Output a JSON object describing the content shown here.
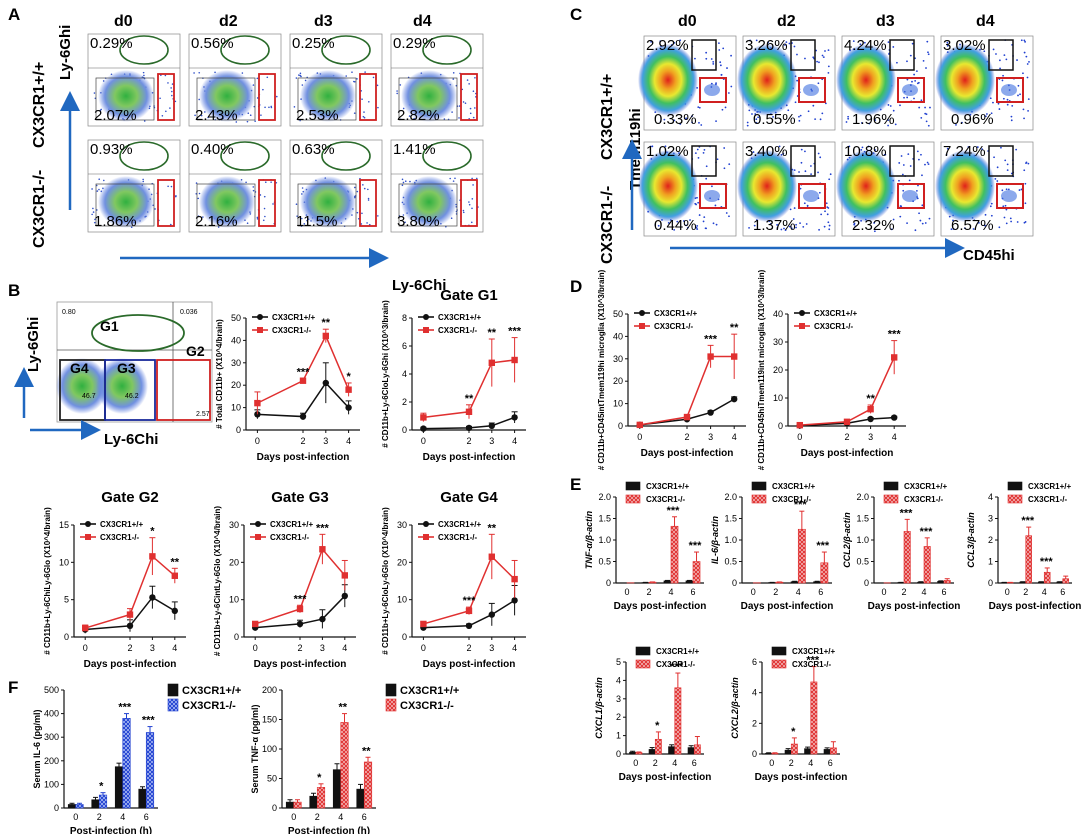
{
  "panels": {
    "a": "A",
    "b": "B",
    "c": "C",
    "d": "D",
    "e": "E",
    "f": "F"
  },
  "days": [
    "d0",
    "d2",
    "d3",
    "d4"
  ],
  "rows": {
    "wt": "CX3CR1+/+",
    "ko": "CX3CR1-/-"
  },
  "genotype_wt": "CX3CR1+/+",
  "genotype_ko": "CX3CR1-/-",
  "panel_a": {
    "y_axis": "Ly-6Ghi",
    "x_axis": "Ly-6Chi",
    "wt_top": [
      "0.29%",
      "0.56%",
      "0.25%",
      "0.29%"
    ],
    "wt_bot": [
      "2.07%",
      "2.43%",
      "2.53%",
      "2.82%"
    ],
    "ko_top": [
      "0.93%",
      "0.40%",
      "0.63%",
      "1.41%"
    ],
    "ko_bot": [
      "1.86%",
      "2.16%",
      "11.5%",
      "3.80%"
    ]
  },
  "panel_c": {
    "y_axis": "Tmem119hi",
    "x_axis": "CD45hi",
    "wt_top": [
      "2.92%",
      "3.26%",
      "4.24%",
      "3.02%"
    ],
    "wt_bot": [
      "0.33%",
      "0.55%",
      "1.96%",
      "0.96%"
    ],
    "ko_top": [
      "1.02%",
      "3.40%",
      "10.8%",
      "7.24%"
    ],
    "ko_bot": [
      "0.44%",
      "1.37%",
      "2.32%",
      "6.57%"
    ]
  },
  "panel_b_gate": {
    "y_axis": "Ly-6Ghi",
    "x_axis": "Ly-6Chi",
    "gates": [
      "G1",
      "G2",
      "G3",
      "G4"
    ],
    "values": [
      "0.80",
      "0.036",
      "46.7",
      "46.2",
      "2.57"
    ]
  },
  "x_label_days": "Days post-infection",
  "x_label_hours": "Post-infection (h)",
  "chart_data": [
    {
      "id": "b1",
      "type": "line",
      "title": "",
      "ylabel": "# Total CD11b+ (X10^4/brain)",
      "xlabel": "Days post-infection",
      "x": [
        0,
        2,
        3,
        4
      ],
      "ylim": [
        0,
        50
      ],
      "yticks": [
        0,
        10,
        20,
        30,
        40,
        50
      ],
      "series": [
        {
          "name": "CX3CR1+/+",
          "values": [
            7,
            6,
            21,
            10
          ],
          "err": [
            2,
            1.5,
            9,
            3
          ]
        },
        {
          "name": "CX3CR1-/-",
          "values": [
            12,
            22,
            42,
            18
          ],
          "err": [
            5,
            1,
            3,
            3
          ]
        }
      ],
      "annotations": [
        {
          "x": 2,
          "text": "***"
        },
        {
          "x": 3,
          "text": "**"
        },
        {
          "x": 4,
          "text": "*"
        }
      ]
    },
    {
      "id": "b2",
      "type": "line",
      "title": "Gate G1",
      "ylabel": "# CD11b+Ly-6CloLy-6Ghi (X10^3/brain)",
      "xlabel": "Days post-infection",
      "x": [
        0,
        2,
        3,
        4
      ],
      "ylim": [
        0,
        8
      ],
      "yticks": [
        0,
        2,
        4,
        6,
        8
      ],
      "series": [
        {
          "name": "CX3CR1+/+",
          "values": [
            0.1,
            0.15,
            0.3,
            0.9
          ],
          "err": [
            0.1,
            0.1,
            0.2,
            0.4
          ]
        },
        {
          "name": "CX3CR1-/-",
          "values": [
            0.9,
            1.3,
            4.8,
            5.0
          ],
          "err": [
            0.3,
            0.5,
            1.7,
            1.6
          ]
        }
      ],
      "annotations": [
        {
          "x": 2,
          "text": "**"
        },
        {
          "x": 3,
          "text": "**"
        },
        {
          "x": 4,
          "text": "***"
        }
      ]
    },
    {
      "id": "b3",
      "type": "line",
      "title": "Gate G2",
      "ylabel": "# CD11b+Ly-6ChiLy-6Glo (X10^4/brain)",
      "xlabel": "Days post-infection",
      "x": [
        0,
        2,
        3,
        4
      ],
      "ylim": [
        0,
        15
      ],
      "yticks": [
        0,
        5,
        10,
        15
      ],
      "series": [
        {
          "name": "CX3CR1+/+",
          "values": [
            1.0,
            1.5,
            5.3,
            3.5
          ],
          "err": [
            0.5,
            0.8,
            1.5,
            1.2
          ]
        },
        {
          "name": "CX3CR1-/-",
          "values": [
            1.2,
            3.0,
            10.8,
            8.2
          ],
          "err": [
            0.4,
            0.8,
            2.5,
            1.0
          ]
        }
      ],
      "annotations": [
        {
          "x": 3,
          "text": "*"
        },
        {
          "x": 4,
          "text": "**"
        }
      ]
    },
    {
      "id": "b4",
      "type": "line",
      "title": "Gate G3",
      "ylabel": "# CD11b+Ly-6CintLy-6Glo (X10^4/brain)",
      "xlabel": "Days post-infection",
      "x": [
        0,
        2,
        3,
        4
      ],
      "ylim": [
        0,
        30
      ],
      "yticks": [
        0,
        10,
        20,
        30
      ],
      "series": [
        {
          "name": "CX3CR1+/+",
          "values": [
            2.5,
            3.5,
            4.8,
            11
          ],
          "err": [
            0.8,
            1,
            2.5,
            3
          ]
        },
        {
          "name": "CX3CR1-/-",
          "values": [
            3.5,
            7.5,
            23.5,
            16.5
          ],
          "err": [
            0.5,
            1,
            4,
            4
          ]
        }
      ],
      "annotations": [
        {
          "x": 2,
          "text": "***"
        },
        {
          "x": 3,
          "text": "***"
        }
      ]
    },
    {
      "id": "b5",
      "type": "line",
      "title": "Gate G4",
      "ylabel": "# CD11b+Ly-6CloLy-6Glo (X10^4/brain)",
      "xlabel": "Days post-infection",
      "x": [
        0,
        2,
        3,
        4
      ],
      "ylim": [
        0,
        30
      ],
      "yticks": [
        0,
        10,
        20,
        30
      ],
      "series": [
        {
          "name": "CX3CR1+/+",
          "values": [
            2.5,
            3,
            6,
            9.8
          ],
          "err": [
            0.5,
            0.5,
            3,
            4
          ]
        },
        {
          "name": "CX3CR1-/-",
          "values": [
            3.5,
            7,
            21.5,
            15.5
          ],
          "err": [
            0.5,
            1,
            6,
            5
          ]
        }
      ],
      "annotations": [
        {
          "x": 2,
          "text": "***"
        },
        {
          "x": 3,
          "text": "**"
        }
      ]
    },
    {
      "id": "d1",
      "type": "line",
      "title": "",
      "ylabel": "# CD11b+CD45intTmem119hi microglia (X10^3/brain)",
      "xlabel": "Days post-infection",
      "x": [
        0,
        2,
        3,
        4
      ],
      "ylim": [
        0,
        50
      ],
      "yticks": [
        0,
        10,
        20,
        30,
        40,
        50
      ],
      "series": [
        {
          "name": "CX3CR1+/+",
          "values": [
            0.5,
            3,
            6,
            12
          ],
          "err": [
            0.3,
            0.5,
            0.8,
            1
          ]
        },
        {
          "name": "CX3CR1-/-",
          "values": [
            0.5,
            4,
            31,
            31
          ],
          "err": [
            0.3,
            1,
            5,
            10
          ]
        }
      ],
      "annotations": [
        {
          "x": 3,
          "text": "***"
        },
        {
          "x": 4,
          "text": "**"
        }
      ]
    },
    {
      "id": "d2",
      "type": "line",
      "title": "",
      "ylabel": "# CD11b+CD45hiTmem119int microglia (X10^3/brain)",
      "xlabel": "Days post-infection",
      "x": [
        0,
        2,
        3,
        4
      ],
      "ylim": [
        0,
        40
      ],
      "yticks": [
        0,
        10,
        20,
        30,
        40
      ],
      "series": [
        {
          "name": "CX3CR1+/+",
          "values": [
            0.2,
            1,
            2.5,
            3
          ],
          "err": [
            0.2,
            0.3,
            0.5,
            0.5
          ]
        },
        {
          "name": "CX3CR1-/-",
          "values": [
            0.3,
            1.5,
            6,
            24.5
          ],
          "err": [
            0.2,
            0.5,
            1.5,
            6
          ]
        }
      ],
      "annotations": [
        {
          "x": 3,
          "text": "**"
        },
        {
          "x": 4,
          "text": "***"
        }
      ]
    },
    {
      "id": "e1",
      "type": "bar",
      "ylabel": "TNF-α/β-actin",
      "xlabel": "Days post-infection",
      "categories": [
        "0",
        "2",
        "4",
        "6"
      ],
      "ylim": [
        0,
        2.0
      ],
      "yticks": [
        "0",
        "0.5",
        "1.0",
        "1.5",
        "2.0"
      ],
      "series": [
        {
          "name": "CX3CR1+/+",
          "values": [
            0.005,
            0.01,
            0.05,
            0.05
          ],
          "err": [
            0,
            0.005,
            0.01,
            0.01
          ]
        },
        {
          "name": "CX3CR1-/-",
          "values": [
            0.005,
            0.02,
            1.32,
            0.5
          ],
          "err": [
            0,
            0.005,
            0.22,
            0.22
          ]
        }
      ],
      "annotations": [
        {
          "i": 2,
          "text": "***"
        },
        {
          "i": 3,
          "text": "***"
        }
      ]
    },
    {
      "id": "e2",
      "type": "bar",
      "ylabel": "IL-6/β-actin",
      "xlabel": "Days post-infection",
      "categories": [
        "0",
        "2",
        "4",
        "6"
      ],
      "ylim": [
        0,
        2.0
      ],
      "yticks": [
        "0",
        "0.5",
        "1.0",
        "1.5",
        "2.0"
      ],
      "series": [
        {
          "name": "CX3CR1+/+",
          "values": [
            0.005,
            0.01,
            0.03,
            0.03
          ],
          "err": [
            0,
            0.005,
            0.01,
            0.01
          ]
        },
        {
          "name": "CX3CR1-/-",
          "values": [
            0.005,
            0.02,
            1.25,
            0.47
          ],
          "err": [
            0,
            0.005,
            0.42,
            0.25
          ]
        }
      ],
      "annotations": [
        {
          "i": 2,
          "text": "***"
        },
        {
          "i": 3,
          "text": "***"
        }
      ]
    },
    {
      "id": "e3",
      "type": "bar",
      "ylabel": "CCL2/β-actin",
      "xlabel": "Days post-infection",
      "categories": [
        "0",
        "2",
        "4",
        "6"
      ],
      "ylim": [
        0,
        2.0
      ],
      "yticks": [
        "0",
        "0.5",
        "1.0",
        "1.5",
        "2.0"
      ],
      "series": [
        {
          "name": "CX3CR1+/+",
          "values": [
            0.005,
            0.01,
            0.02,
            0.04
          ],
          "err": [
            0,
            0.005,
            0.01,
            0.01
          ]
        },
        {
          "name": "CX3CR1-/-",
          "values": [
            0.005,
            1.2,
            0.85,
            0.06
          ],
          "err": [
            0,
            0.28,
            0.2,
            0.04
          ]
        }
      ],
      "annotations": [
        {
          "i": 1,
          "text": "***"
        },
        {
          "i": 2,
          "text": "***"
        }
      ]
    },
    {
      "id": "e4",
      "type": "bar",
      "ylabel": "CCL3/β-actin",
      "xlabel": "Days post-infection",
      "categories": [
        "0",
        "2",
        "4",
        "6"
      ],
      "ylim": [
        0,
        4
      ],
      "yticks": [
        "0",
        "1",
        "2",
        "3",
        "4"
      ],
      "series": [
        {
          "name": "CX3CR1+/+",
          "values": [
            0.02,
            0.05,
            0.05,
            0.05
          ],
          "err": [
            0.01,
            0.01,
            0.01,
            0.01
          ]
        },
        {
          "name": "CX3CR1-/-",
          "values": [
            0.02,
            2.2,
            0.5,
            0.2
          ],
          "err": [
            0.01,
            0.4,
            0.2,
            0.12
          ]
        }
      ],
      "annotations": [
        {
          "i": 1,
          "text": "***"
        },
        {
          "i": 2,
          "text": "***"
        }
      ]
    },
    {
      "id": "e5",
      "type": "bar",
      "ylabel": "CXCL1/β-actin",
      "xlabel": "Days post-infection",
      "categories": [
        "0",
        "2",
        "4",
        "6"
      ],
      "ylim": [
        0,
        5
      ],
      "yticks": [
        "0",
        "1",
        "2",
        "3",
        "4",
        "5"
      ],
      "series": [
        {
          "name": "CX3CR1+/+",
          "values": [
            0.1,
            0.25,
            0.4,
            0.35
          ],
          "err": [
            0.05,
            0.1,
            0.1,
            0.1
          ]
        },
        {
          "name": "CX3CR1-/-",
          "values": [
            0.08,
            0.8,
            3.6,
            0.5
          ],
          "err": [
            0.03,
            0.4,
            0.8,
            0.45
          ]
        }
      ],
      "annotations": [
        {
          "i": 1,
          "text": "*"
        },
        {
          "i": 2,
          "text": "***"
        }
      ]
    },
    {
      "id": "e6",
      "type": "bar",
      "ylabel": "CXCL2/β-actin",
      "xlabel": "Days post-infection",
      "categories": [
        "0",
        "2",
        "4",
        "6"
      ],
      "ylim": [
        0,
        6
      ],
      "yticks": [
        "0",
        "2",
        "4",
        "6"
      ],
      "series": [
        {
          "name": "CX3CR1+/+",
          "values": [
            0.05,
            0.25,
            0.35,
            0.3
          ],
          "err": [
            0.03,
            0.1,
            0.1,
            0.1
          ]
        },
        {
          "name": "CX3CR1-/-",
          "values": [
            0.05,
            0.65,
            4.7,
            0.4
          ],
          "err": [
            0.03,
            0.4,
            1.0,
            0.4
          ]
        }
      ],
      "annotations": [
        {
          "i": 1,
          "text": "*"
        },
        {
          "i": 2,
          "text": "***"
        }
      ]
    },
    {
      "id": "f1",
      "type": "bar",
      "ylabel": "Serum IL-6 (pg/ml)",
      "xlabel": "Post-infection (h)",
      "categories": [
        "0",
        "2",
        "4",
        "6"
      ],
      "ylim": [
        0,
        500
      ],
      "yticks": [
        "0",
        "100",
        "200",
        "300",
        "400",
        "500"
      ],
      "series": [
        {
          "name": "CX3CR1+/+",
          "values": [
            15,
            35,
            175,
            80
          ],
          "err": [
            5,
            10,
            15,
            10
          ]
        },
        {
          "name": "CX3CR1-/-",
          "values": [
            15,
            55,
            380,
            320
          ],
          "err": [
            5,
            10,
            20,
            25
          ]
        }
      ],
      "annotations": [
        {
          "i": 1,
          "text": "*"
        },
        {
          "i": 2,
          "text": "***"
        },
        {
          "i": 3,
          "text": "***"
        }
      ]
    },
    {
      "id": "f2",
      "type": "bar",
      "ylabel": "Serum TNF-α (pg/ml)",
      "xlabel": "Post-infection (h)",
      "categories": [
        "0",
        "2",
        "4",
        "6"
      ],
      "ylim": [
        0,
        200
      ],
      "yticks": [
        "0",
        "50",
        "100",
        "150",
        "200"
      ],
      "series": [
        {
          "name": "CX3CR1+/+",
          "values": [
            10,
            20,
            65,
            32
          ],
          "err": [
            4,
            5,
            10,
            8
          ]
        },
        {
          "name": "CX3CR1-/-",
          "values": [
            10,
            35,
            145,
            78
          ],
          "err": [
            4,
            6,
            15,
            8
          ]
        }
      ],
      "annotations": [
        {
          "i": 1,
          "text": "*"
        },
        {
          "i": 2,
          "text": "**"
        },
        {
          "i": 3,
          "text": "**"
        }
      ]
    }
  ]
}
